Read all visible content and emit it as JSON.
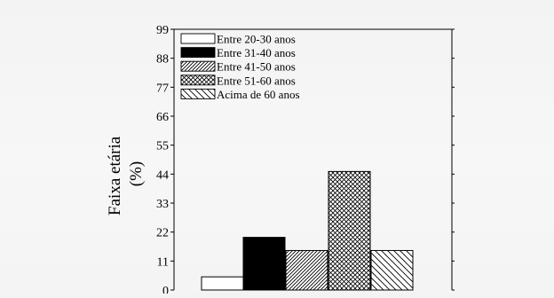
{
  "chart_data": {
    "type": "bar",
    "ylabel": "Faixa etária\n(%)",
    "ylabel_lines": [
      "Faixa etária",
      "(%)"
    ],
    "ylim": [
      0,
      99
    ],
    "yticks": [
      0,
      11,
      22,
      33,
      44,
      55,
      66,
      77,
      88,
      99
    ],
    "legend_position": "top-left",
    "series": [
      {
        "name": "Entre 20-30 anos",
        "value": 5,
        "pattern": "white"
      },
      {
        "name": "Entre 31-40 anos",
        "value": 20,
        "pattern": "black"
      },
      {
        "name": "Entre 41-50 anos",
        "value": 15,
        "pattern": "diagonal-dense"
      },
      {
        "name": "Entre 51-60 anos",
        "value": 45,
        "pattern": "crosshatch"
      },
      {
        "name": "Acima de 60 anos",
        "value": 15,
        "pattern": "diagonal-sparse"
      }
    ],
    "colors": {
      "axis": "#000000",
      "bar_stroke": "#000000",
      "fill_black": "#000000",
      "fill_white": "#ffffff"
    }
  }
}
